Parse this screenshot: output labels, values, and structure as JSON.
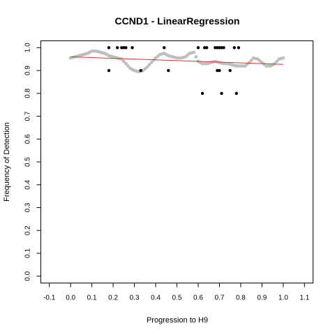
{
  "chart_data": {
    "type": "scatter",
    "title": "CCND1 - LinearRegression",
    "xlabel": "Progression to H9",
    "ylabel": "Frequency of Detection",
    "xlim": [
      -0.14,
      1.14
    ],
    "ylim": [
      -0.03,
      1.03
    ],
    "x_ticks": [
      -0.1,
      0.0,
      0.1,
      0.2,
      0.3,
      0.4,
      0.5,
      0.6,
      0.7,
      0.8,
      0.9,
      1.0,
      1.1
    ],
    "x_tick_labels": [
      "-0.1",
      "0.0",
      "0.1",
      "0.2",
      "0.3",
      "0.4",
      "0.5",
      "0.6",
      "0.7",
      "0.8",
      "0.9",
      "1.0",
      "1.1"
    ],
    "y_ticks": [
      0.0,
      0.1,
      0.2,
      0.3,
      0.4,
      0.5,
      0.6,
      0.7,
      0.8,
      0.9,
      1.0
    ],
    "y_tick_labels": [
      "0.0",
      "0.1",
      "0.2",
      "0.3",
      "0.4",
      "0.5",
      "0.6",
      "0.7",
      "0.8",
      "0.9",
      "1.0"
    ],
    "grid": false,
    "colors": {
      "observed": "#000000",
      "smoothed": "#bebebe",
      "regression": "#e0302a"
    },
    "observed_points": {
      "x": [
        0.18,
        0.18,
        0.22,
        0.24,
        0.25,
        0.26,
        0.29,
        0.33,
        0.44,
        0.46,
        0.6,
        0.62,
        0.63,
        0.64,
        0.68,
        0.69,
        0.69,
        0.7,
        0.7,
        0.71,
        0.71,
        0.72,
        0.75,
        0.77,
        0.78,
        0.79
      ],
      "y": [
        1.0,
        0.9,
        1.0,
        1.0,
        1.0,
        1.0,
        1.0,
        0.9,
        1.0,
        0.9,
        1.0,
        0.8,
        1.0,
        1.0,
        1.0,
        0.9,
        1.0,
        0.9,
        1.0,
        0.8,
        1.0,
        1.0,
        0.9,
        1.0,
        0.8,
        1.0
      ]
    },
    "smoothed_curve": {
      "x": [
        0.0,
        0.02,
        0.04,
        0.06,
        0.08,
        0.1,
        0.12,
        0.14,
        0.16,
        0.18,
        0.2,
        0.22,
        0.24,
        0.26,
        0.28,
        0.3,
        0.32,
        0.34,
        0.36,
        0.38,
        0.4,
        0.42,
        0.44,
        0.46,
        0.48,
        0.5,
        0.52,
        0.54,
        0.56,
        0.58,
        0.6,
        0.62,
        0.64,
        0.66,
        0.68,
        0.7,
        0.72,
        0.74,
        0.76,
        0.78,
        0.8,
        0.82,
        0.84,
        0.86,
        0.88,
        0.9,
        0.92,
        0.94,
        0.96,
        0.98,
        1.0
      ],
      "y": [
        0.955,
        0.96,
        0.965,
        0.97,
        0.975,
        0.985,
        0.985,
        0.98,
        0.975,
        0.965,
        0.96,
        0.955,
        0.95,
        0.93,
        0.91,
        0.9,
        0.895,
        0.9,
        0.915,
        0.935,
        0.955,
        0.97,
        0.975,
        0.965,
        0.96,
        0.955,
        0.955,
        0.96,
        0.975,
        0.98,
        0.94,
        0.93,
        0.93,
        0.935,
        0.94,
        0.935,
        0.93,
        0.93,
        0.925,
        0.92,
        0.92,
        0.92,
        0.935,
        0.955,
        0.95,
        0.935,
        0.92,
        0.92,
        0.93,
        0.95,
        0.955
      ]
    },
    "regression_line": {
      "x": [
        0.0,
        1.0
      ],
      "y": [
        0.96,
        0.927
      ]
    }
  }
}
